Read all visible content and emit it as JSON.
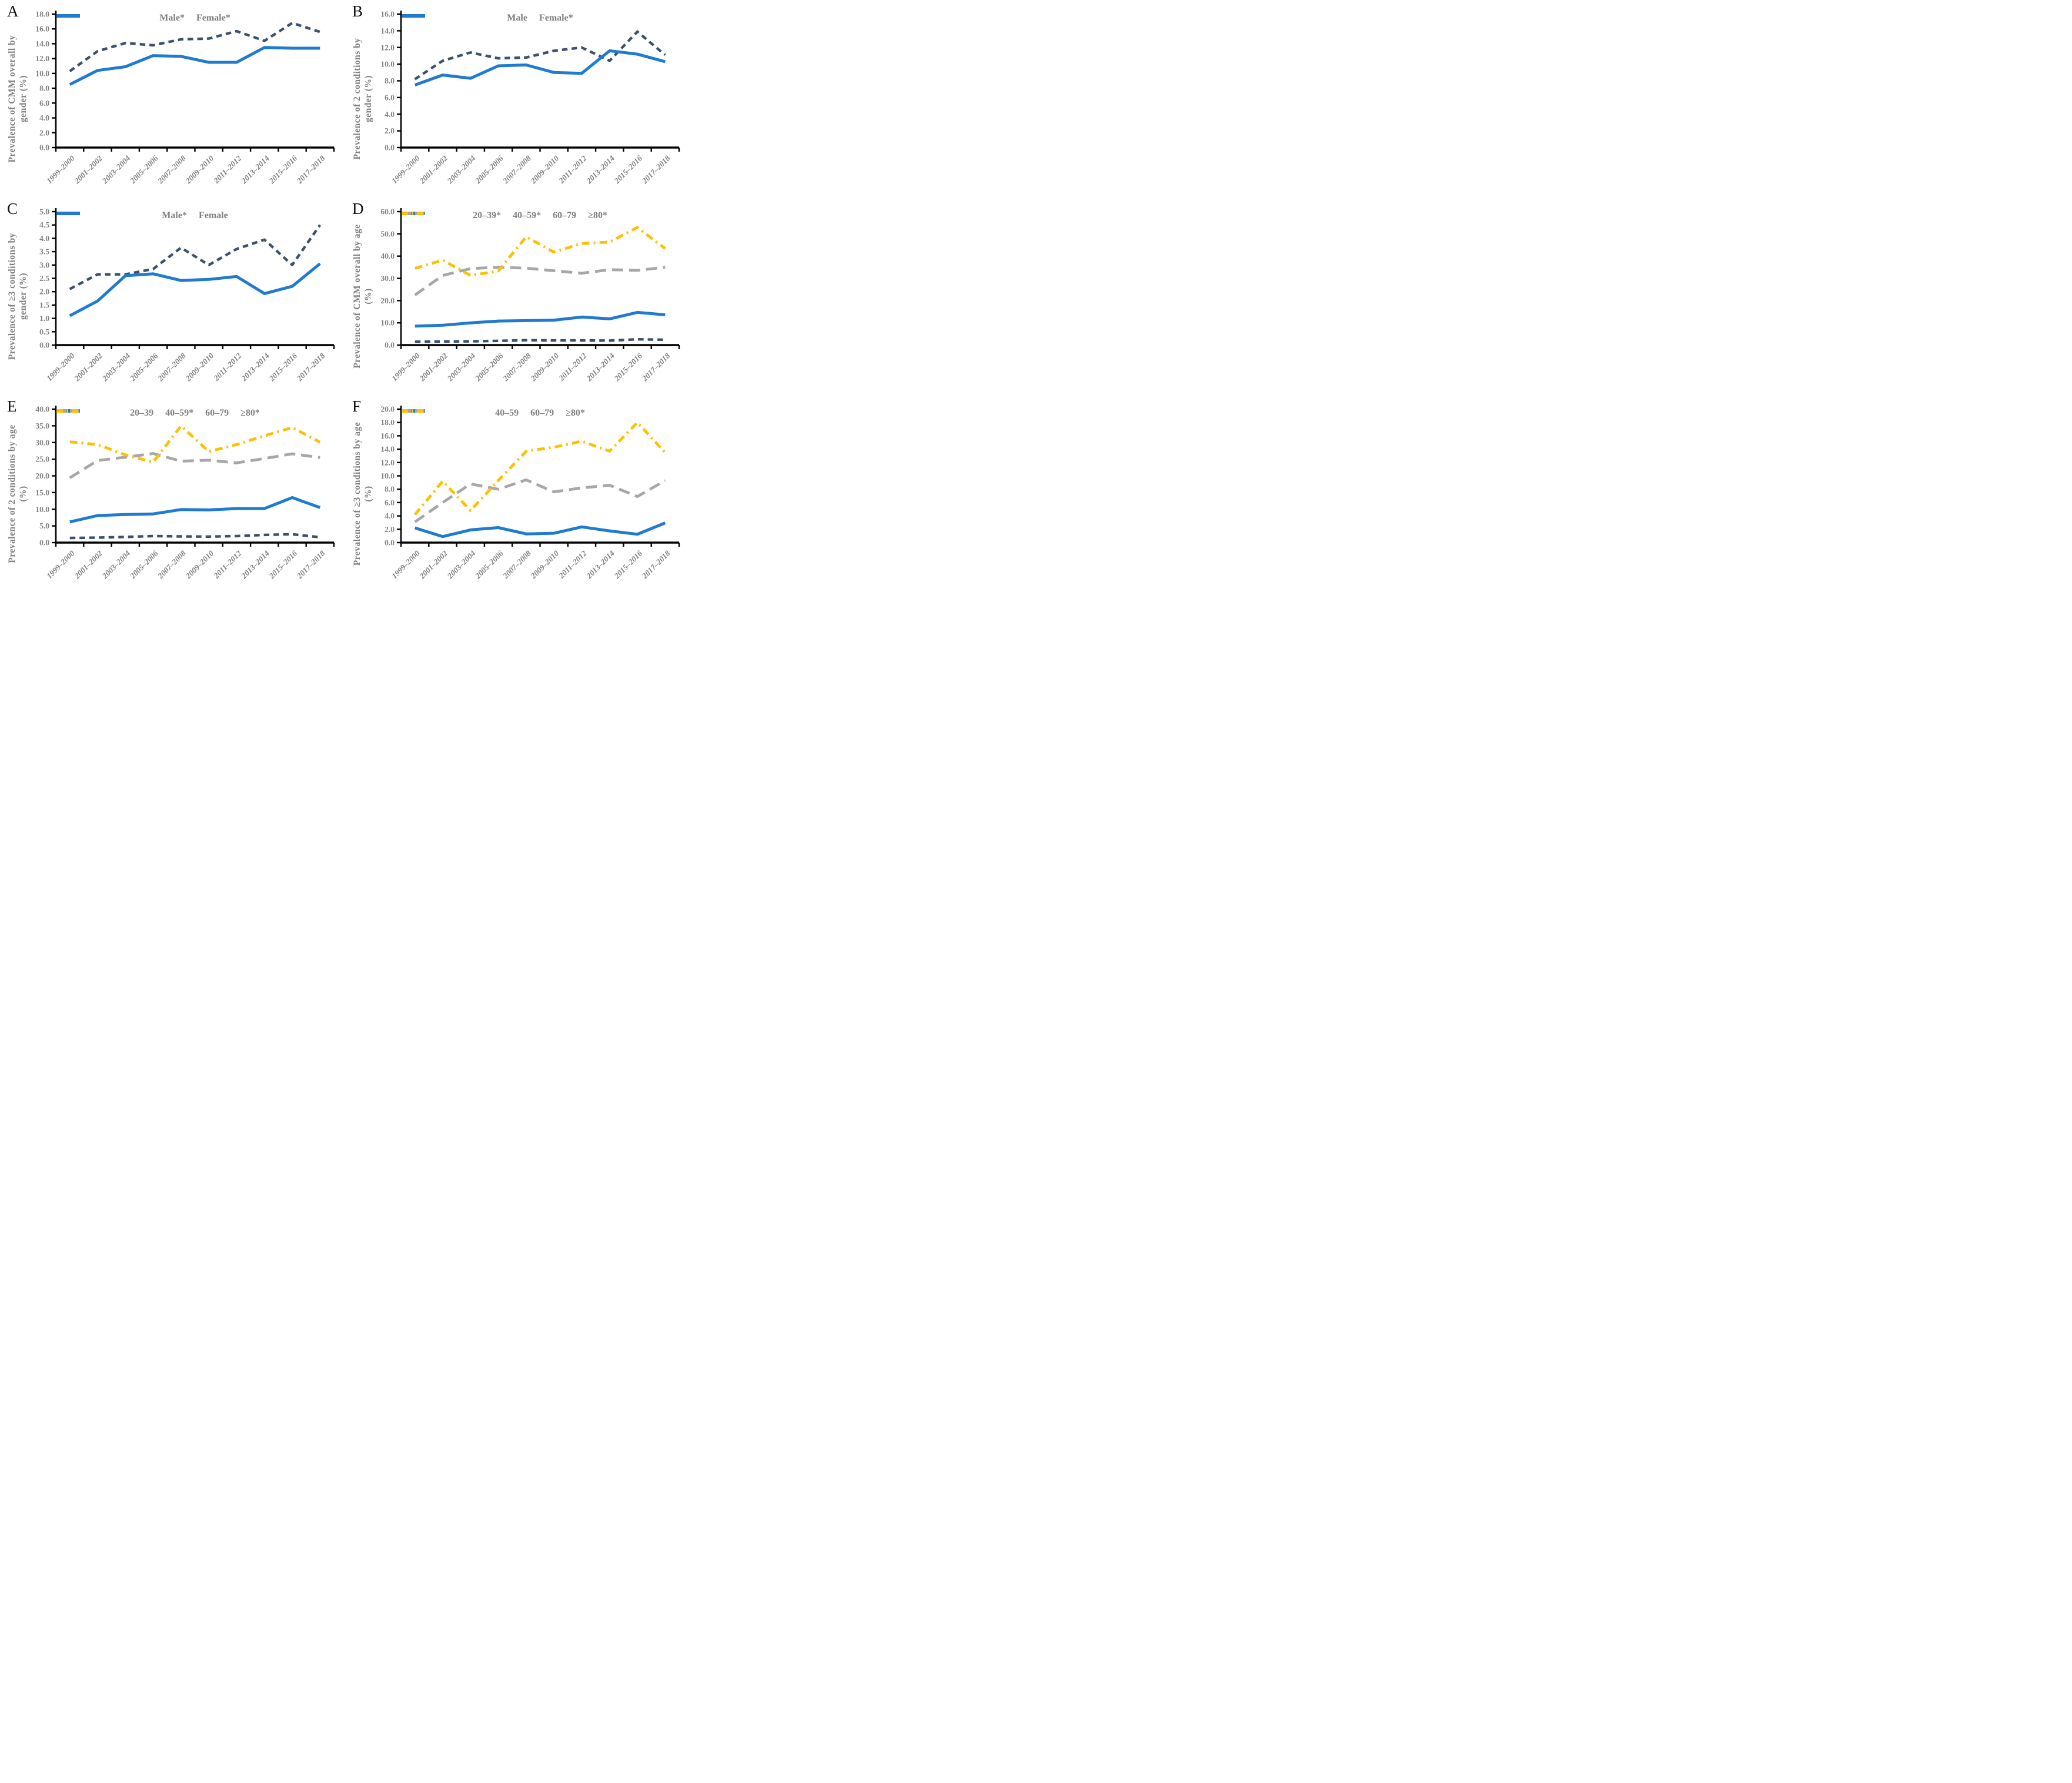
{
  "categories": [
    "1999–2000",
    "2001–2002",
    "2003–2004",
    "2005–2006",
    "2007–2008",
    "2009–2010",
    "2011–2012",
    "2013–2014",
    "2015–2016",
    "2017–2018"
  ],
  "colors": {
    "navy": "#3A506B",
    "blue": "#1F7AD1",
    "gray": "#A7A7A7",
    "yellow": "#FFC000",
    "label_gray": "#7F7F7F",
    "axis": "#000000"
  },
  "chart_data": [
    {
      "id": "A",
      "type": "line",
      "ylabel": "Prevalence of CMM overall by\ngender (%)",
      "xlabel": "",
      "ylim": [
        0,
        18
      ],
      "ystep": 2,
      "tick_decimals": 1,
      "grid": false,
      "legend_position": "top",
      "series": [
        {
          "name": "Male*",
          "color": "#3A506B",
          "dash": "dashed",
          "values": [
            10.3,
            13.0,
            14.1,
            13.8,
            14.6,
            14.7,
            15.7,
            14.4,
            16.8,
            15.6
          ]
        },
        {
          "name": "Female*",
          "color": "#1F7AD1",
          "dash": "solid",
          "values": [
            8.5,
            10.4,
            10.9,
            12.4,
            12.3,
            11.5,
            11.5,
            13.5,
            13.4,
            13.4
          ]
        }
      ]
    },
    {
      "id": "B",
      "type": "line",
      "ylabel": "Prevalence of 2 conditions by\ngender (%)",
      "xlabel": "",
      "ylim": [
        0,
        16
      ],
      "ystep": 2,
      "tick_decimals": 1,
      "grid": false,
      "legend_position": "top",
      "series": [
        {
          "name": "Male",
          "color": "#3A506B",
          "dash": "dashed",
          "values": [
            8.2,
            10.4,
            11.4,
            10.7,
            10.8,
            11.6,
            12.0,
            10.4,
            13.9,
            11.1
          ]
        },
        {
          "name": "Female*",
          "color": "#1F7AD1",
          "dash": "solid",
          "values": [
            7.5,
            8.7,
            8.3,
            9.8,
            9.9,
            9.0,
            8.9,
            11.6,
            11.2,
            10.3
          ]
        }
      ]
    },
    {
      "id": "C",
      "type": "line",
      "ylabel": "Prevalence of ≥3 conditions by\ngender (%)",
      "xlabel": "",
      "ylim": [
        0,
        5
      ],
      "ystep": 0.5,
      "tick_decimals": 1,
      "grid": false,
      "legend_position": "top",
      "series": [
        {
          "name": "Male*",
          "color": "#3A506B",
          "dash": "dashed",
          "values": [
            2.1,
            2.65,
            2.65,
            2.85,
            3.65,
            3.0,
            3.6,
            3.95,
            3.0,
            4.5
          ]
        },
        {
          "name": "Female",
          "color": "#1F7AD1",
          "dash": "solid",
          "values": [
            1.1,
            1.65,
            2.6,
            2.67,
            2.42,
            2.46,
            2.57,
            1.93,
            2.2,
            3.05
          ]
        }
      ]
    },
    {
      "id": "D",
      "type": "line",
      "ylabel": "Prevalence of CMM overall by age\n(%)",
      "xlabel": "",
      "ylim": [
        0,
        60
      ],
      "ystep": 10,
      "tick_decimals": 1,
      "grid": false,
      "legend_position": "top",
      "series": [
        {
          "name": "20–39*",
          "color": "#3A506B",
          "dash": "dashed",
          "values": [
            1.5,
            1.6,
            1.7,
            1.9,
            2.2,
            2.1,
            2.1,
            2.0,
            2.6,
            2.4
          ]
        },
        {
          "name": "40–59*",
          "color": "#1F7AD1",
          "dash": "solid",
          "values": [
            8.5,
            8.9,
            10.0,
            10.8,
            11.0,
            11.2,
            12.6,
            11.8,
            14.7,
            13.6
          ]
        },
        {
          "name": "60–79",
          "color": "#A7A7A7",
          "dash": "longdash",
          "values": [
            22.5,
            31.3,
            34.4,
            35.0,
            34.6,
            33.4,
            32.3,
            33.9,
            33.6,
            35.0
          ]
        },
        {
          "name": "≥80*",
          "color": "#FFC000",
          "dash": "dashdot",
          "values": [
            34.5,
            38.2,
            31.3,
            33.3,
            48.7,
            41.8,
            45.7,
            46.3,
            52.9,
            43.4
          ]
        }
      ]
    },
    {
      "id": "E",
      "type": "line",
      "ylabel": "Prevalence of 2 conditions by age\n(%)",
      "xlabel": "",
      "ylim": [
        0,
        40
      ],
      "ystep": 5,
      "tick_decimals": 1,
      "grid": false,
      "legend_position": "top",
      "series": [
        {
          "name": "20–39",
          "color": "#3A506B",
          "dash": "dashed",
          "values": [
            1.4,
            1.5,
            1.7,
            1.95,
            1.85,
            1.8,
            1.95,
            2.3,
            2.5,
            1.6
          ]
        },
        {
          "name": "40–59*",
          "color": "#1F7AD1",
          "dash": "solid",
          "values": [
            6.2,
            8.1,
            8.4,
            8.6,
            9.9,
            9.8,
            10.2,
            10.2,
            13.5,
            10.5
          ]
        },
        {
          "name": "60–79",
          "color": "#A7A7A7",
          "dash": "longdash",
          "values": [
            19.4,
            24.6,
            25.6,
            26.7,
            24.4,
            24.7,
            23.9,
            25.2,
            26.6,
            25.5
          ]
        },
        {
          "name": "≥80*",
          "color": "#FFC000",
          "dash": "dashdot",
          "values": [
            30.2,
            29.4,
            26.3,
            24.1,
            35.0,
            27.3,
            29.4,
            32.0,
            34.5,
            30.1
          ]
        }
      ]
    },
    {
      "id": "F",
      "type": "line",
      "ylabel": "Prevalence of ≥3 conditions by age\n(%)",
      "xlabel": "",
      "ylim": [
        0,
        20
      ],
      "ystep": 2,
      "tick_decimals": 1,
      "grid": false,
      "legend_position": "top",
      "series": [
        {
          "name": "40–59",
          "color": "#1F7AD1",
          "dash": "solid",
          "values": [
            2.2,
            0.9,
            1.9,
            2.25,
            1.3,
            1.4,
            2.35,
            1.75,
            1.25,
            2.95
          ]
        },
        {
          "name": "60–79",
          "color": "#A7A7A7",
          "dash": "longdash",
          "values": [
            3.1,
            6.0,
            8.8,
            8.0,
            9.4,
            7.6,
            8.2,
            8.6,
            6.9,
            9.3
          ]
        },
        {
          "name": "≥80*",
          "color": "#FFC000",
          "dash": "dashdot",
          "values": [
            4.2,
            9.2,
            4.8,
            9.3,
            13.7,
            14.3,
            15.2,
            13.7,
            18.0,
            13.5
          ]
        }
      ]
    }
  ]
}
